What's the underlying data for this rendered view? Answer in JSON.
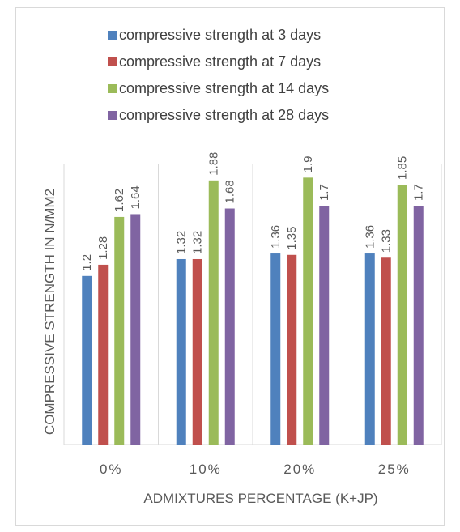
{
  "chart_data": {
    "type": "bar",
    "title": "",
    "xlabel": "ADMIXTURES PERCENTAGE (K+JP)",
    "ylabel": "COMPRESSIVE STRENGTH IN N/MM2",
    "categories": [
      "0%",
      "10%",
      "20%",
      "25%"
    ],
    "ylim": [
      0,
      2
    ],
    "grid": false,
    "legend_position": "top",
    "series": [
      {
        "name": "compressive strength at 3 days",
        "color": "#4f81bd",
        "values": [
          1.2,
          1.32,
          1.36,
          1.36
        ],
        "labels": [
          "1.2",
          "1.32",
          "1.36",
          "1.36"
        ]
      },
      {
        "name": "compressive strength at 7 days",
        "color": "#c0504d",
        "values": [
          1.28,
          1.32,
          1.35,
          1.33
        ],
        "labels": [
          "1.28",
          "1.32",
          "1.35",
          "1.33"
        ]
      },
      {
        "name": "compressive strength at 14 days",
        "color": "#9bbb59",
        "values": [
          1.62,
          1.88,
          1.9,
          1.85
        ],
        "labels": [
          "1.62",
          "1.88",
          "1.9",
          "1.85"
        ]
      },
      {
        "name": "compressive strength at 28 days",
        "color": "#8064a2",
        "values": [
          1.64,
          1.68,
          1.7,
          1.7
        ],
        "labels": [
          "1.64",
          "1.68",
          "1.7",
          "1.7"
        ]
      }
    ]
  }
}
